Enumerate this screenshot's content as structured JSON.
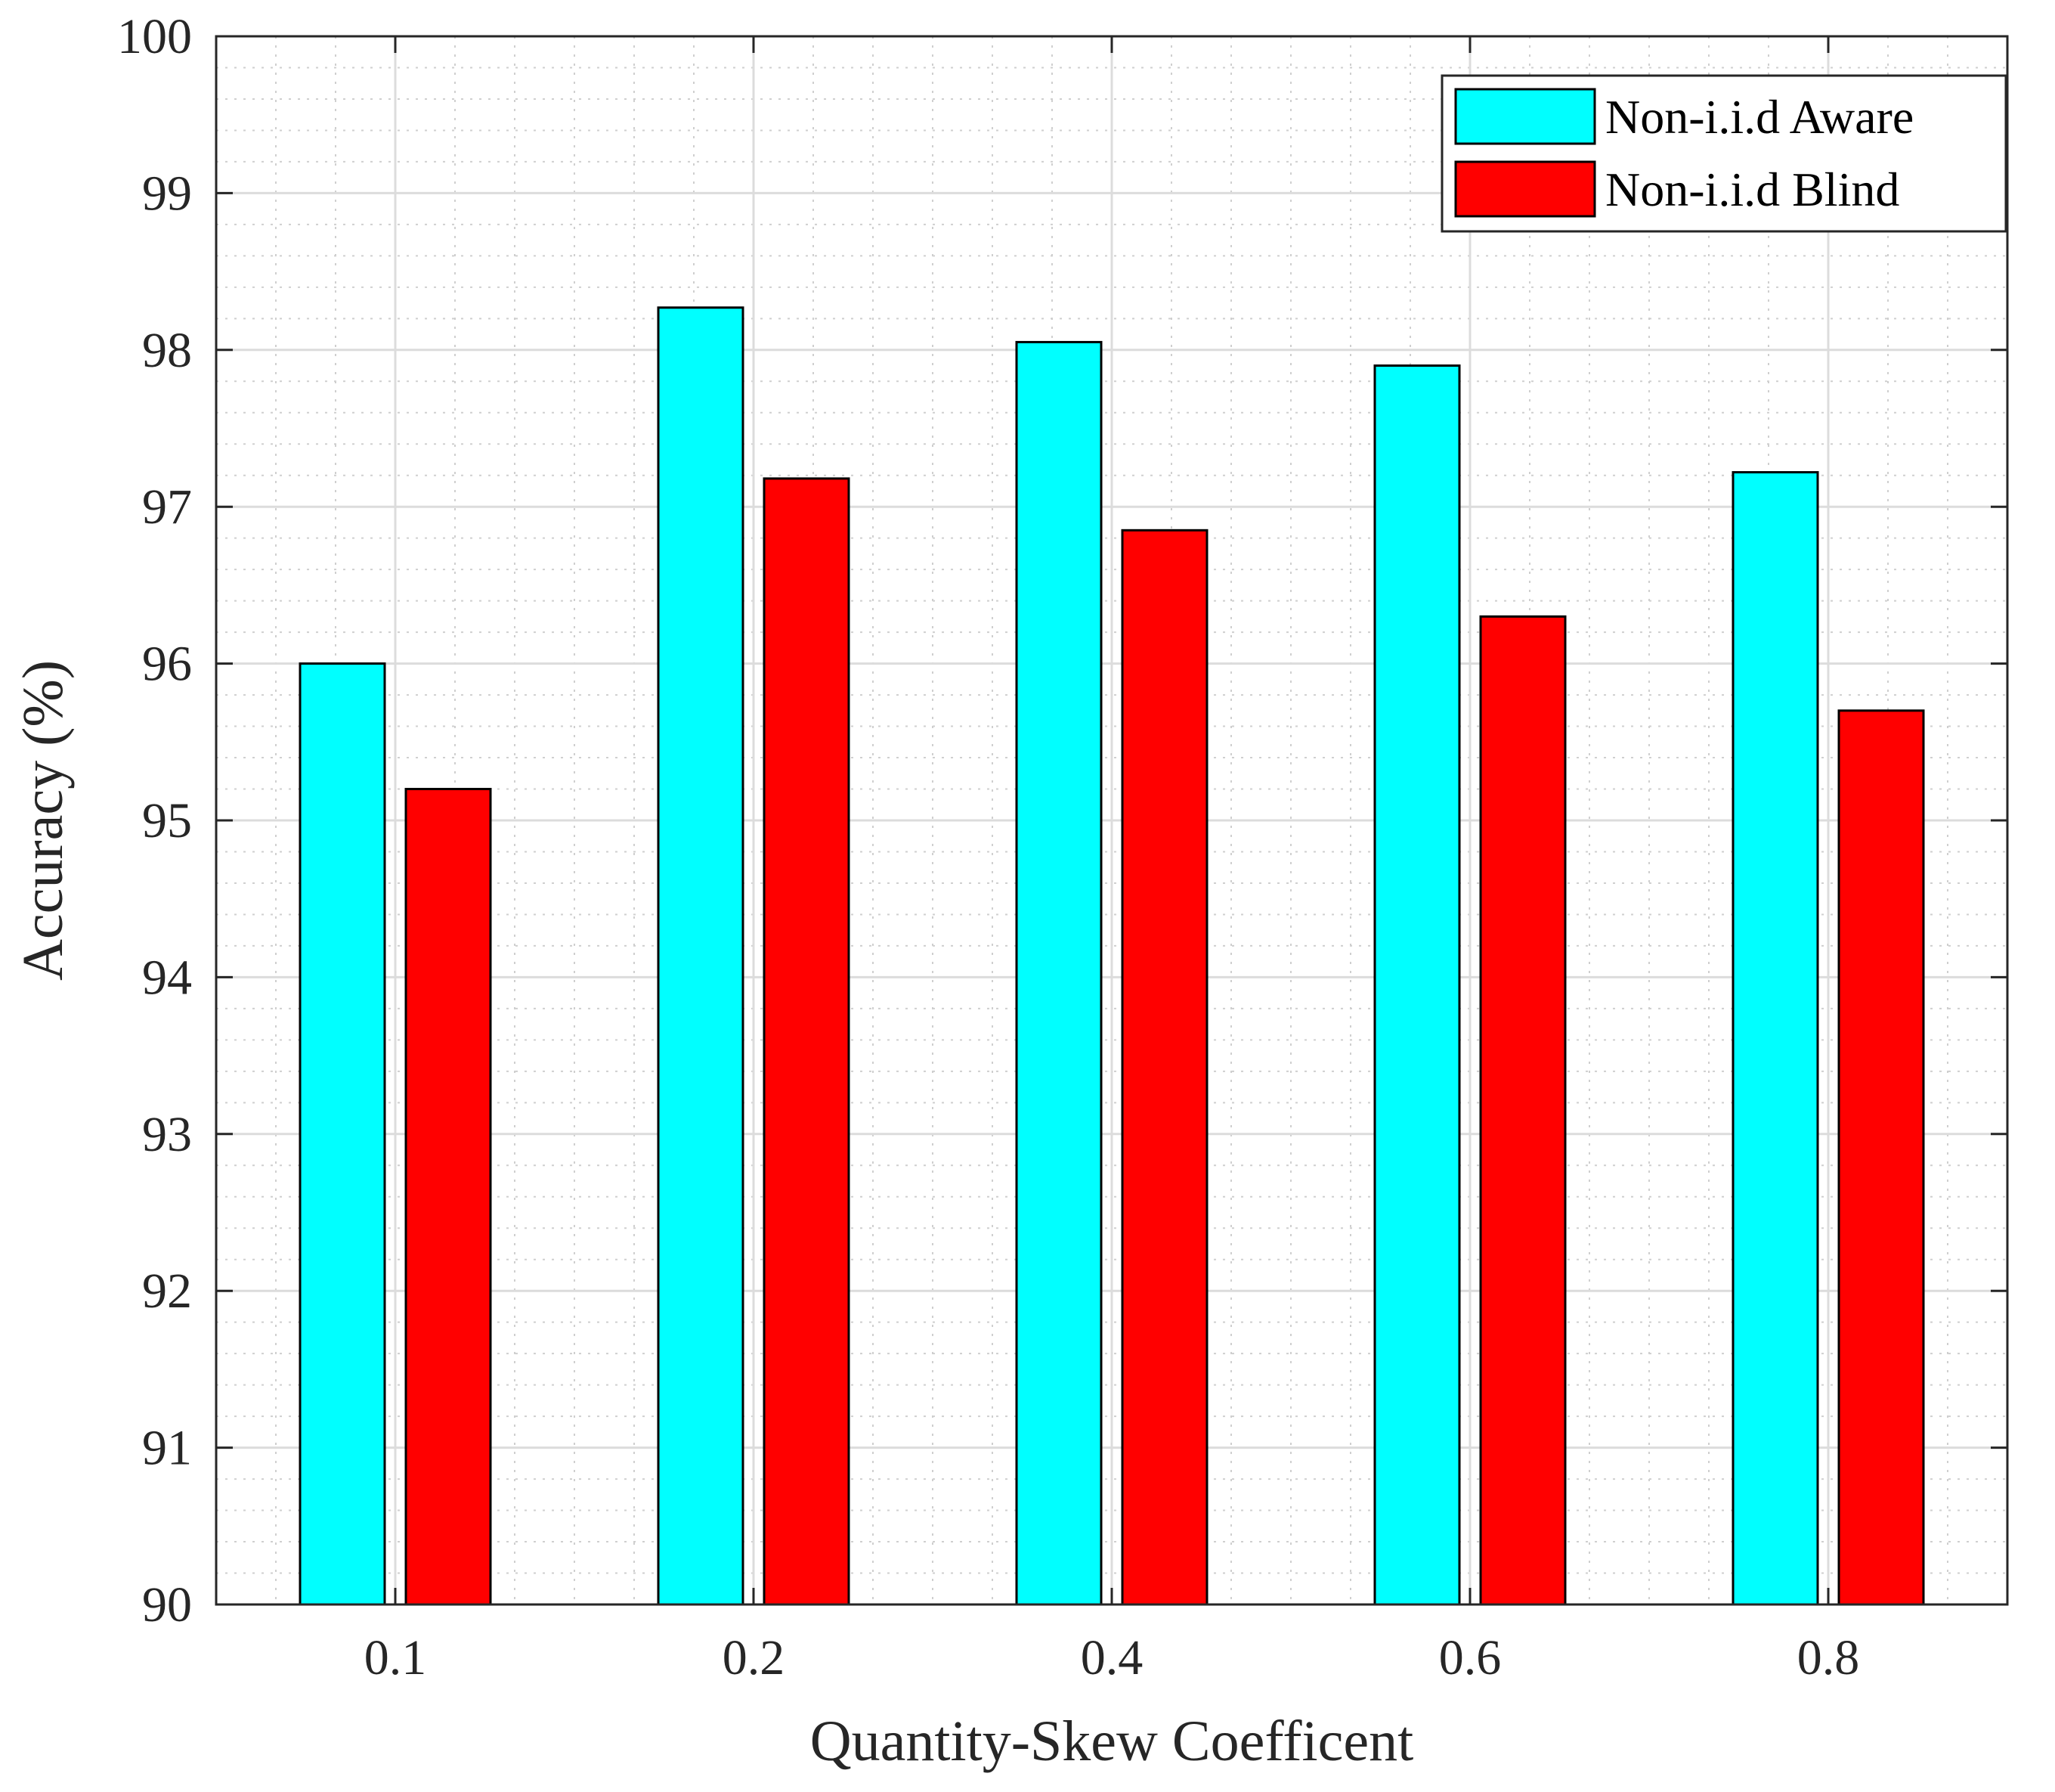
{
  "chart_data": {
    "type": "bar",
    "title": "",
    "xlabel": "Quantity-Skew Coefficent",
    "ylabel": "Accuracy (%)",
    "categories": [
      "0.1",
      "0.2",
      "0.4",
      "0.6",
      "0.8"
    ],
    "series": [
      {
        "name": "Non-i.i.d Aware",
        "values": [
          96.0,
          98.27,
          98.05,
          97.9,
          97.22
        ],
        "color": "#00FFFF"
      },
      {
        "name": "Non-i.i.d Blind",
        "values": [
          95.2,
          97.18,
          96.85,
          96.3,
          95.7
        ],
        "color": "#FF0000"
      }
    ],
    "ylim": [
      90,
      100
    ],
    "yticks": [
      "90",
      "91",
      "92",
      "93",
      "94",
      "95",
      "96",
      "97",
      "98",
      "99",
      "100"
    ],
    "grid": true,
    "minor_grid": true,
    "legend_location": "top-right"
  }
}
